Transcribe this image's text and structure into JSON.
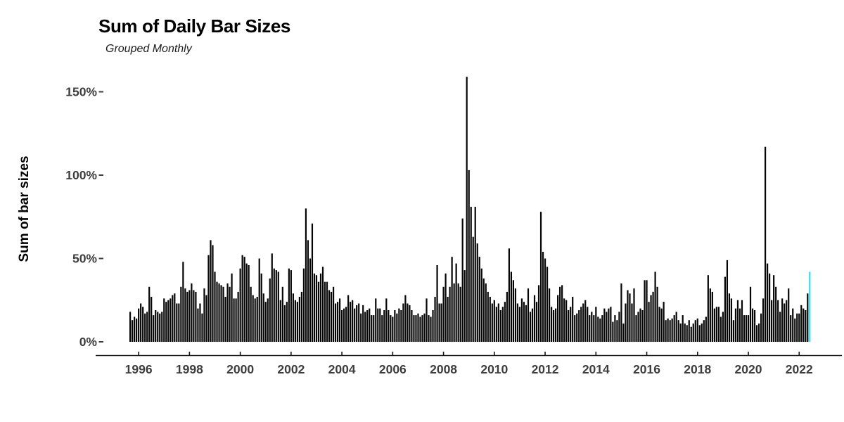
{
  "chart_data": {
    "type": "bar",
    "title": "Sum of Daily Bar Sizes",
    "subtitle": "Grouped Monthly",
    "ylabel": "Sum of bar sizes",
    "x_start": "1995-09",
    "x_frequency": "monthly",
    "ylim": [
      0,
      165
    ],
    "grid": false,
    "legend": "none",
    "y_ticks": [
      {
        "label": "0%",
        "value": 0
      },
      {
        "label": "50%",
        "value": 50
      },
      {
        "label": "100%",
        "value": 100
      },
      {
        "label": "150%",
        "value": 150
      }
    ],
    "x_ticks": [
      "1996",
      "1998",
      "2000",
      "2002",
      "2004",
      "2006",
      "2008",
      "2010",
      "2012",
      "2014",
      "2016",
      "2018",
      "2020",
      "2022"
    ],
    "x_tick_start_year": 1996,
    "bar_color": "#050505",
    "highlight_color": "#3adbe8",
    "highlight_index": 321,
    "axis_line_color": "#141414",
    "axis_text_color": "#3d3d3d",
    "values": [
      18,
      13,
      15,
      14,
      20,
      23,
      21,
      17,
      18,
      33,
      27,
      16,
      19,
      18,
      17,
      18,
      26,
      24,
      25,
      26,
      28,
      29,
      23,
      23,
      33,
      48,
      32,
      30,
      31,
      35,
      31,
      30,
      20,
      23,
      17,
      32,
      28,
      52,
      61,
      58,
      42,
      36,
      35,
      34,
      33,
      27,
      35,
      33,
      41,
      26,
      26,
      30,
      44,
      52,
      51,
      47,
      46,
      33,
      28,
      26,
      27,
      50,
      41,
      29,
      24,
      26,
      38,
      53,
      44,
      43,
      42,
      25,
      33,
      22,
      24,
      44,
      43,
      29,
      25,
      24,
      27,
      30,
      44,
      80,
      61,
      50,
      71,
      41,
      40,
      36,
      41,
      45,
      36,
      36,
      31,
      30,
      33,
      23,
      24,
      26,
      19,
      20,
      21,
      28,
      24,
      25,
      20,
      22,
      23,
      17,
      22,
      18,
      19,
      20,
      16,
      16,
      26,
      20,
      20,
      16,
      19,
      26,
      19,
      16,
      15,
      19,
      17,
      20,
      19,
      23,
      28,
      23,
      22,
      19,
      16,
      16,
      17,
      15,
      16,
      17,
      26,
      16,
      15,
      19,
      27,
      46,
      23,
      23,
      33,
      41,
      27,
      33,
      51,
      35,
      47,
      35,
      33,
      74,
      43,
      159,
      103,
      81,
      63,
      81,
      59,
      51,
      44,
      38,
      35,
      30,
      27,
      23,
      25,
      21,
      23,
      19,
      21,
      24,
      30,
      56,
      42,
      37,
      32,
      23,
      21,
      26,
      24,
      22,
      32,
      18,
      20,
      28,
      24,
      34,
      78,
      54,
      50,
      45,
      32,
      21,
      19,
      20,
      28,
      33,
      34,
      26,
      25,
      19,
      21,
      27,
      16,
      17,
      19,
      21,
      23,
      25,
      21,
      16,
      18,
      16,
      21,
      15,
      14,
      16,
      20,
      18,
      20,
      21,
      12,
      16,
      13,
      18,
      35,
      11,
      23,
      31,
      29,
      23,
      32,
      16,
      18,
      20,
      19,
      37,
      37,
      24,
      28,
      30,
      42,
      33,
      21,
      20,
      24,
      13,
      14,
      13,
      14,
      16,
      18,
      13,
      11,
      16,
      11,
      10,
      13,
      9,
      11,
      13,
      14,
      10,
      11,
      13,
      15,
      40,
      32,
      30,
      20,
      21,
      21,
      15,
      18,
      39,
      49,
      29,
      26,
      13,
      20,
      25,
      20,
      25,
      16,
      16,
      16,
      33,
      20,
      19,
      10,
      11,
      17,
      26,
      117,
      47,
      41,
      25,
      40,
      33,
      25,
      18,
      26,
      23,
      25,
      32,
      16,
      20,
      14,
      17,
      17,
      22,
      20,
      19,
      29,
      42
    ]
  }
}
